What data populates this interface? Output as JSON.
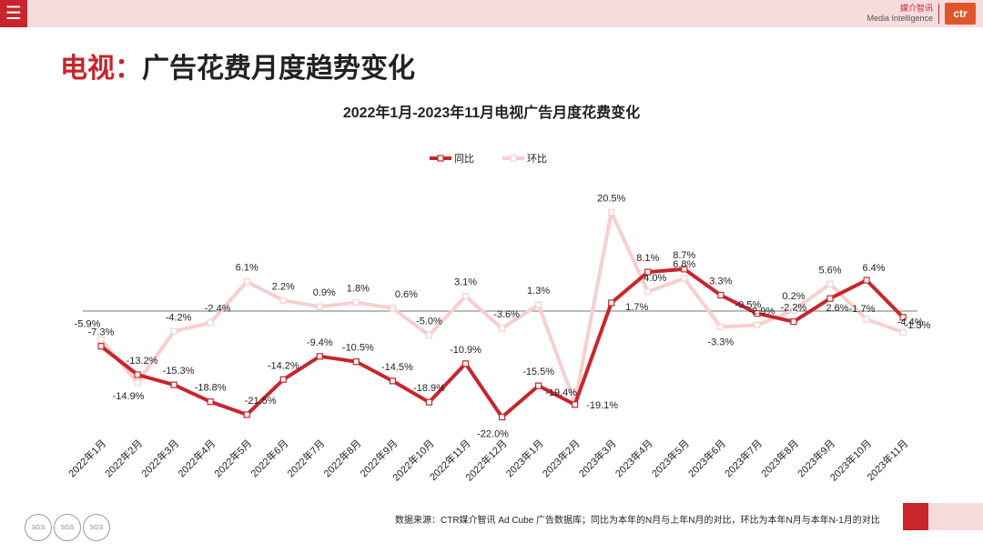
{
  "header": {
    "menu_icon": "hamburger-icon",
    "logo_cn": "媒介智讯",
    "logo_en": "Media Intelligence",
    "logo_mark": "ctr"
  },
  "page_title_prefix": "电视：",
  "page_title_rest": "广告花费月度趋势变化",
  "source_text": "数据来源：CTR媒介智讯 Ad Cube 广告数据库；同比为本年的N月与上年N月的对比，环比为本年N月与本年N-1月的对比",
  "badges": [
    "SGS",
    "SGS",
    "SGS"
  ],
  "colors": {
    "accent": "#c8252c",
    "yoy": "#c8252c",
    "mom": "#f7cfcf",
    "band": "#f6dcdc"
  },
  "chart_data": {
    "type": "line",
    "title": "2022年1月-2023年11月电视广告月度花费变化",
    "categories": [
      "2022年1月",
      "2022年2月",
      "2022年3月",
      "2022年4月",
      "2022年5月",
      "2022年6月",
      "2022年7月",
      "2022年8月",
      "2022年9月",
      "2022年10月",
      "2022年11月",
      "2022年12月",
      "2023年1月",
      "2023年2月",
      "2023年3月",
      "2023年4月",
      "2023年5月",
      "2023年6月",
      "2023年7月",
      "2023年8月",
      "2023年9月",
      "2023年10月",
      "2023年11月"
    ],
    "series": [
      {
        "name": "同比",
        "values": [
          -7.3,
          -13.2,
          -15.3,
          -18.8,
          -21.5,
          -14.2,
          -9.4,
          -10.5,
          -14.5,
          -18.9,
          -10.9,
          -22.0,
          -15.5,
          -19.4,
          1.7,
          8.1,
          8.7,
          3.3,
          -0.5,
          -2.2,
          2.6,
          6.4,
          -1.3
        ]
      },
      {
        "name": "环比",
        "values": [
          -5.9,
          -14.9,
          -4.2,
          -2.4,
          6.1,
          2.2,
          0.9,
          1.8,
          0.6,
          -5.0,
          3.1,
          -3.6,
          1.3,
          -19.1,
          20.5,
          4.0,
          6.8,
          -3.3,
          -2.9,
          0.2,
          5.6,
          -1.7,
          -4.4
        ]
      }
    ],
    "labels": {
      "同比": [
        "-7.3%",
        "-13.2%",
        "-15.3%",
        "-18.8%",
        "-21.5%",
        "-14.2%",
        "-9.4%",
        "-10.5%",
        "-14.5%",
        "-18.9%",
        "-10.9%",
        "-22.0%",
        "-15.5%",
        "-19.4%",
        "1.7%",
        "8.1%",
        "8.7%",
        "3.3%",
        "-0.5%",
        "-2.2%",
        "2.6%",
        "6.4%",
        "-1.3%"
      ],
      "环比": [
        "-5.9%",
        "-14.9%",
        "-4.2%",
        "-2.4%",
        "6.1%",
        "2.2%",
        "0.9%",
        "1.8%",
        "0.6%",
        "-5.0%",
        "3.1%",
        "-3.6%",
        "1.3%",
        "-19.1%",
        "20.5%",
        "4.0%",
        "6.8%",
        "-3.3%",
        "-2.9%",
        "0.2%",
        "5.6%",
        "-1.7%",
        "-4.4%"
      ]
    },
    "legend_position": "top-center",
    "grid": false
  }
}
